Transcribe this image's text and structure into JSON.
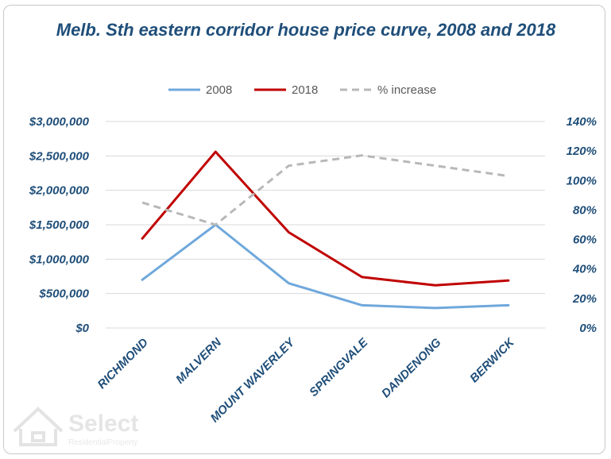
{
  "chart_data": {
    "type": "line",
    "title": "Melb. Sth eastern corridor house price curve, 2008 and 2018",
    "categories": [
      "RICHMOND",
      "MALVERN",
      "MOUNT WAVERLEY",
      "SPRINGVALE",
      "DANDENONG",
      "BERWICK"
    ],
    "series": [
      {
        "name": "2008",
        "axis": "left",
        "color": "#6fa8dc",
        "dash": false,
        "values": [
          700000,
          1500000,
          650000,
          330000,
          290000,
          330000
        ]
      },
      {
        "name": "2018",
        "axis": "left",
        "color": "#c00000",
        "dash": false,
        "values": [
          1300000,
          2560000,
          1390000,
          740000,
          620000,
          690000
        ]
      },
      {
        "name": "% increase",
        "axis": "right",
        "color": "#b8b8b8",
        "dash": true,
        "values": [
          85,
          70,
          110,
          117,
          110,
          103
        ]
      }
    ],
    "y_left": {
      "min": 0,
      "max": 3000000,
      "ticks": [
        "$0",
        "$500,000",
        "$1,000,000",
        "$1,500,000",
        "$2,000,000",
        "$2,500,000",
        "$3,000,000"
      ]
    },
    "y_right": {
      "min": 0,
      "max": 140,
      "ticks": [
        "0%",
        "20%",
        "40%",
        "60%",
        "80%",
        "100%",
        "120%",
        "140%"
      ]
    },
    "grid": true,
    "legend_position": "top"
  },
  "watermark": {
    "brand": "Select",
    "tagline": "ResidentialProperty"
  }
}
